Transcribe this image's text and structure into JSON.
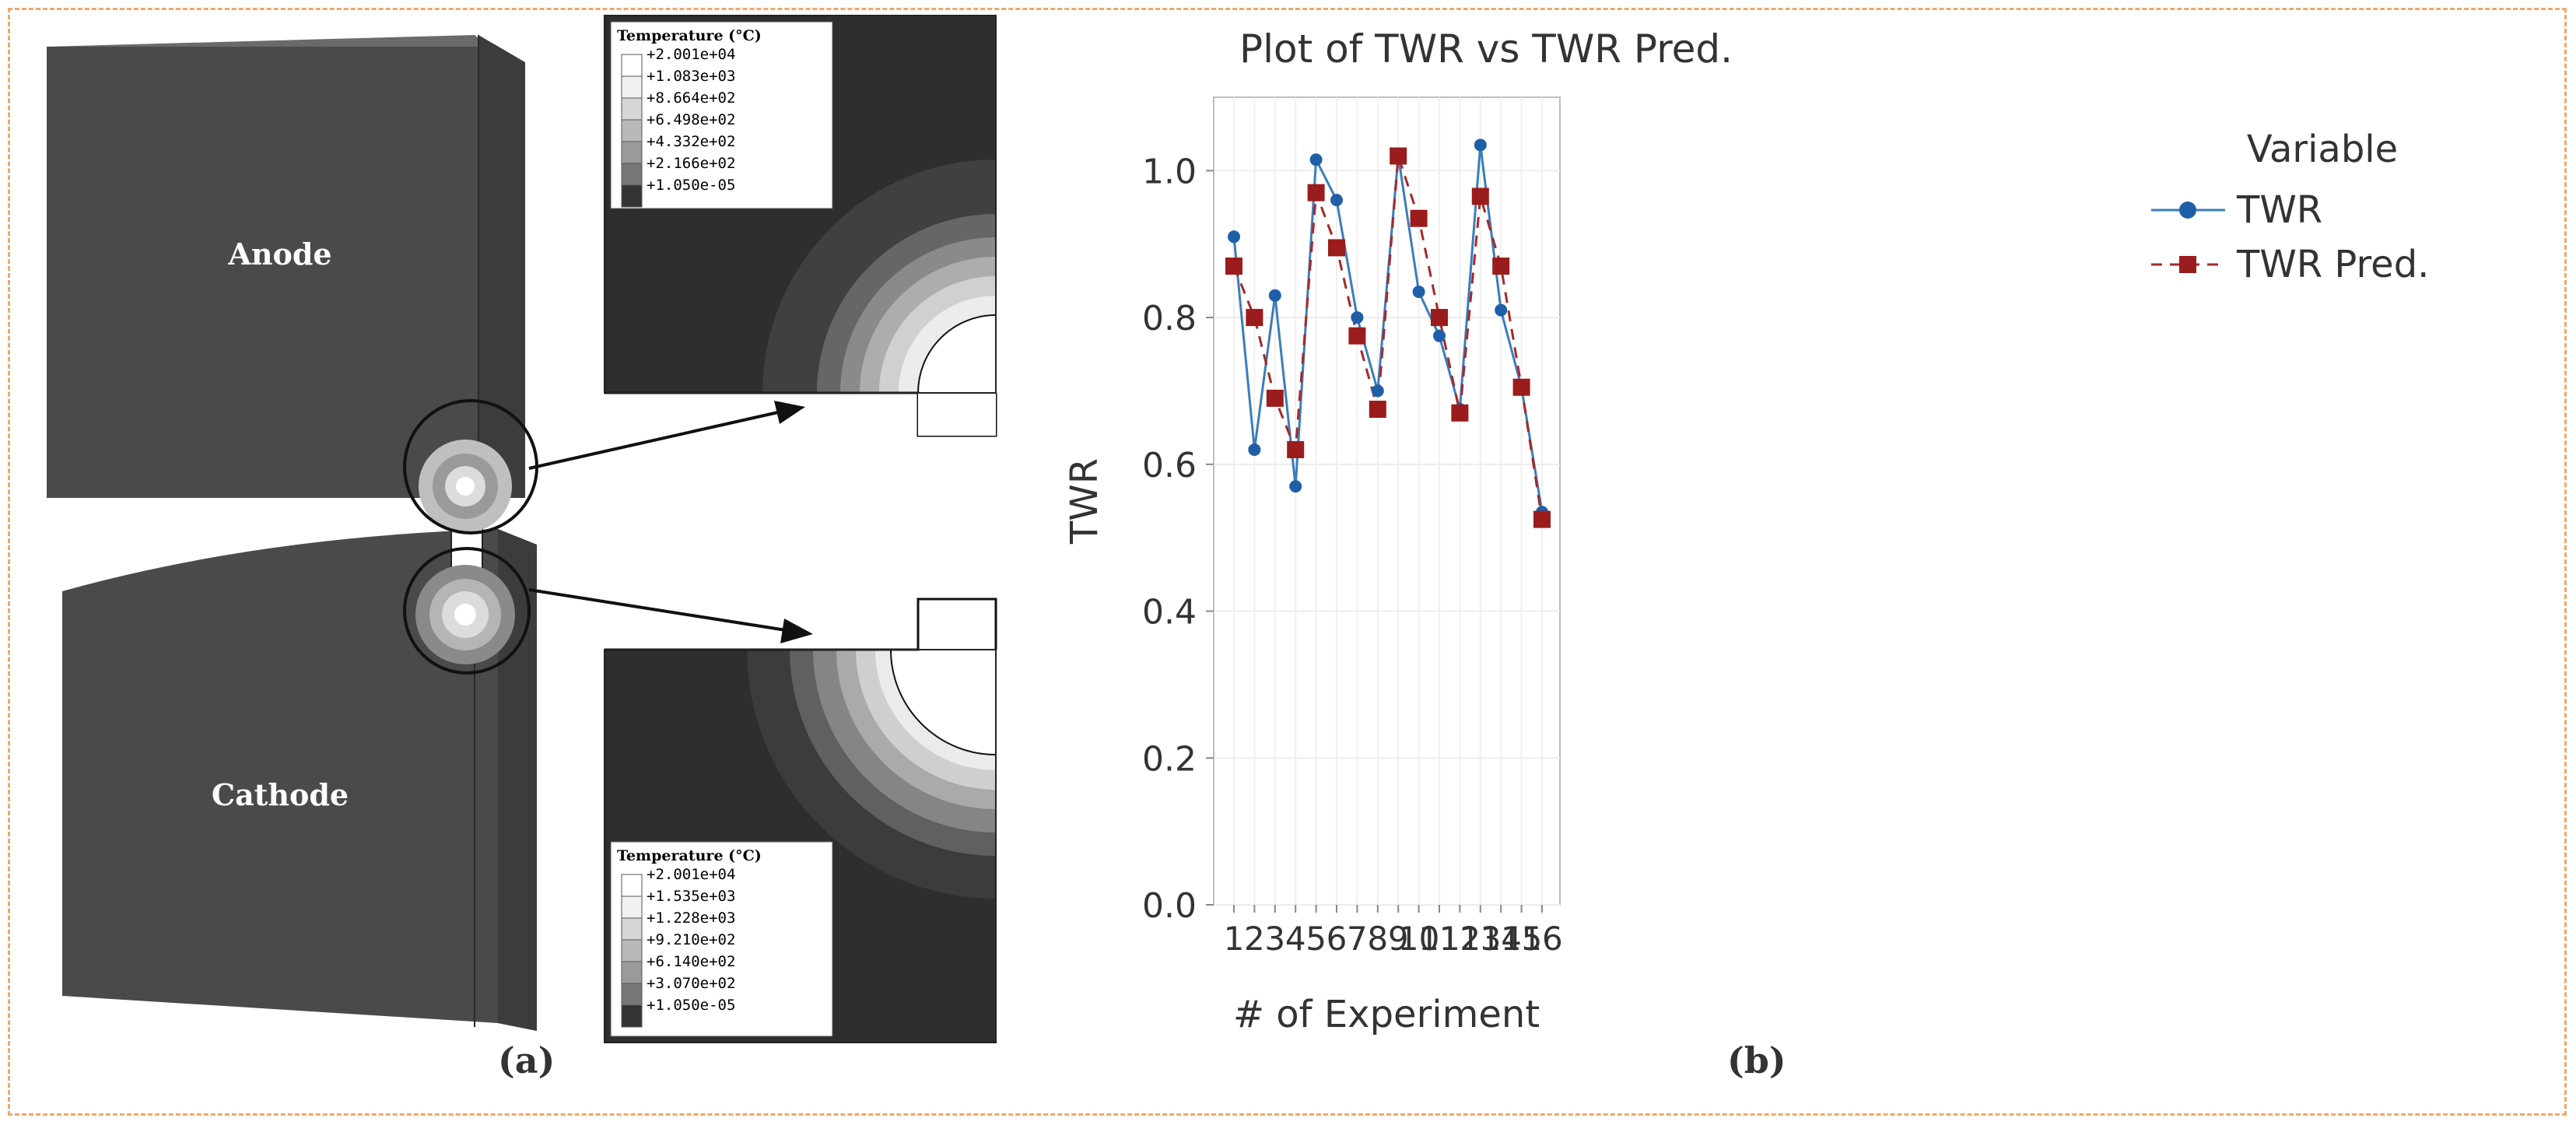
{
  "figure": {
    "panel_a_label": "(a)",
    "panel_b_label": "(b)"
  },
  "sim": {
    "anode_label": "Anode",
    "cathode_label": "Cathode",
    "legend_top": {
      "title": "Temperature (°C)",
      "values": [
        "+2.001e+04",
        "+1.083e+03",
        "+8.664e+02",
        "+6.498e+02",
        "+4.332e+02",
        "+2.166e+02",
        "+1.050e-05"
      ],
      "swatch_colors": [
        "#ffffff",
        "#f1f1f1",
        "#d6d6d6",
        "#b9b9b9",
        "#9a9a9a",
        "#777777",
        "#333333"
      ]
    },
    "legend_bottom": {
      "title": "Temperature (°C)",
      "values": [
        "+2.001e+04",
        "+1.535e+03",
        "+1.228e+03",
        "+9.210e+02",
        "+6.140e+02",
        "+3.070e+02",
        "+1.050e-05"
      ],
      "swatch_colors": [
        "#ffffff",
        "#f1f1f1",
        "#d6d6d6",
        "#b9b9b9",
        "#9a9a9a",
        "#777777",
        "#333333"
      ]
    }
  },
  "chart_data": {
    "type": "line",
    "title": "Plot of TWR vs TWR Pred.",
    "xlabel": "# of Experiment",
    "ylabel": "TWR",
    "categories": [
      "1",
      "2",
      "3",
      "4",
      "5",
      "6",
      "7",
      "8",
      "9",
      "10",
      "11",
      "12",
      "13",
      "14",
      "15",
      "16"
    ],
    "ylim": [
      0,
      1.1
    ],
    "yticks": [
      0.0,
      0.2,
      0.4,
      0.6,
      0.8,
      1.0
    ],
    "ytick_labels": [
      "0.0",
      "0.2",
      "0.4",
      "0.6",
      "0.8",
      "1.0"
    ],
    "legend_title": "Variable",
    "legend_position": "right",
    "grid": true,
    "series": [
      {
        "name": "TWR",
        "color": "#3b7dbd",
        "marker": "circle",
        "line": "solid",
        "values": [
          0.91,
          0.62,
          0.83,
          0.57,
          1.015,
          0.96,
          0.8,
          0.7,
          1.02,
          0.835,
          0.775,
          0.675,
          1.035,
          0.81,
          0.705,
          0.535
        ]
      },
      {
        "name": "TWR Pred.",
        "color": "#a52a2a",
        "marker": "square",
        "line": "dashed",
        "values": [
          0.87,
          0.8,
          0.69,
          0.62,
          0.97,
          0.895,
          0.775,
          0.675,
          1.02,
          0.935,
          0.8,
          0.67,
          0.965,
          0.87,
          0.705,
          0.525
        ]
      }
    ]
  }
}
